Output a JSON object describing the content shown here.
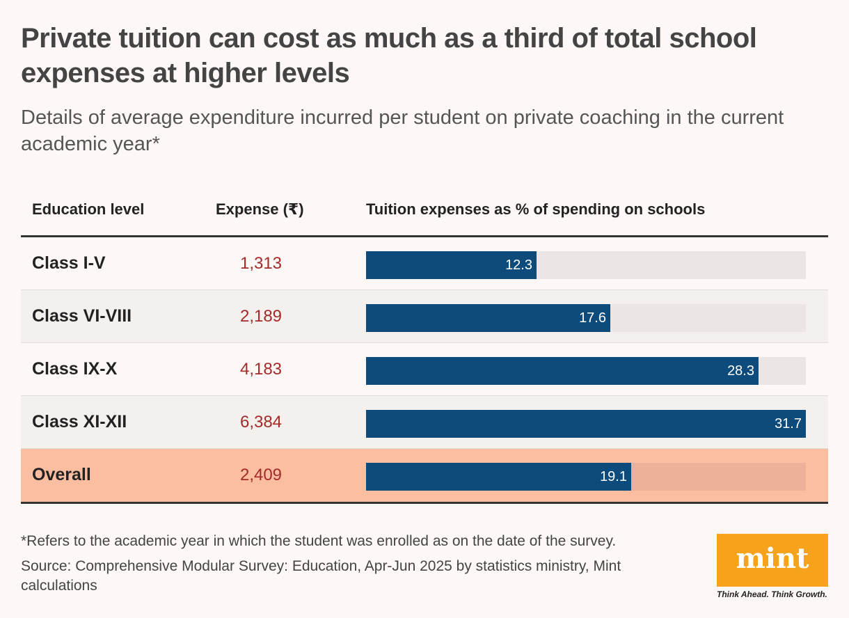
{
  "header": {
    "title": "Private tuition can cost as much as a third of total school expenses at higher levels",
    "subtitle": "Details of average expenditure incurred per student on private coaching in the current academic year*"
  },
  "table": {
    "col_level": "Education level",
    "col_expense": "Expense (₹)",
    "col_pct": "Tuition expenses as % of spending on schools"
  },
  "chart_data": {
    "type": "table",
    "title": "Private tuition can cost as much as a third of total school expenses at higher levels",
    "columns": [
      "Education level",
      "Expense (₹)",
      "Tuition expenses as % of spending on schools"
    ],
    "rows": [
      {
        "level": "Class I-V",
        "expense": "1,313",
        "pct": 12.3,
        "pct_label": "12.3"
      },
      {
        "level": "Class VI-VIII",
        "expense": "2,189",
        "pct": 17.6,
        "pct_label": "17.6"
      },
      {
        "level": "Class IX-X",
        "expense": "4,183",
        "pct": 28.3,
        "pct_label": "28.3"
      },
      {
        "level": "Class XI-XII",
        "expense": "6,384",
        "pct": 31.7,
        "pct_label": "31.7"
      },
      {
        "level": "Overall",
        "expense": "2,409",
        "pct": 19.1,
        "pct_label": "19.1"
      }
    ],
    "xlim": [
      0,
      31.7
    ]
  },
  "footer": {
    "footnote": "*Refers to the academic year in which the student was enrolled as on the date of the survey.",
    "source": "Source: Comprehensive Modular Survey: Education, Apr-Jun 2025 by statistics ministry, Mint calculations",
    "logo_text": "mint",
    "tagline": "Think Ahead. Think Growth."
  },
  "colors": {
    "bar": "#0d4b7c",
    "track": "#ebe6e4",
    "overall_bg": "#fbbea0",
    "expense_text": "#a52a2a",
    "logo_bg": "#f7a21b"
  }
}
